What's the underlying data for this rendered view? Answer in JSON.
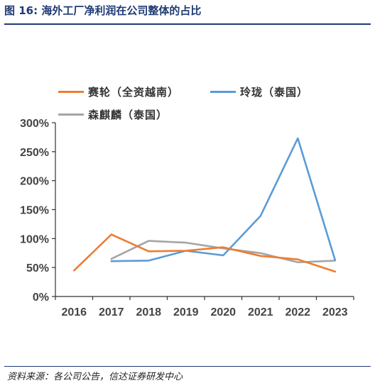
{
  "figure": {
    "title": "图 16:  海外工厂净利润在公司整体的占比",
    "source": "资料来源：各公司公告，信达证券研发中心"
  },
  "chart_data": {
    "type": "line",
    "title": "",
    "xlabel": "",
    "ylabel": "",
    "categories": [
      "2016",
      "2017",
      "2018",
      "2019",
      "2020",
      "2021",
      "2022",
      "2023"
    ],
    "ylim": [
      0,
      300
    ],
    "yticks": [
      "0%",
      "50%",
      "100%",
      "150%",
      "200%",
      "250%",
      "300%"
    ],
    "grid": false,
    "legend_position": "top-left",
    "series": [
      {
        "name": "赛轮（全资越南）",
        "color": "#ED7D31",
        "values": [
          45,
          107,
          78,
          79,
          85,
          70,
          64,
          43
        ]
      },
      {
        "name": "玲珑（泰国）",
        "color": "#5B9BD5",
        "values": [
          null,
          61,
          62,
          79,
          71,
          139,
          273,
          63
        ]
      },
      {
        "name": "森麒麟（泰国）",
        "color": "#A5A5A5",
        "values": [
          null,
          65,
          96,
          93,
          83,
          75,
          59,
          62
        ]
      }
    ]
  }
}
